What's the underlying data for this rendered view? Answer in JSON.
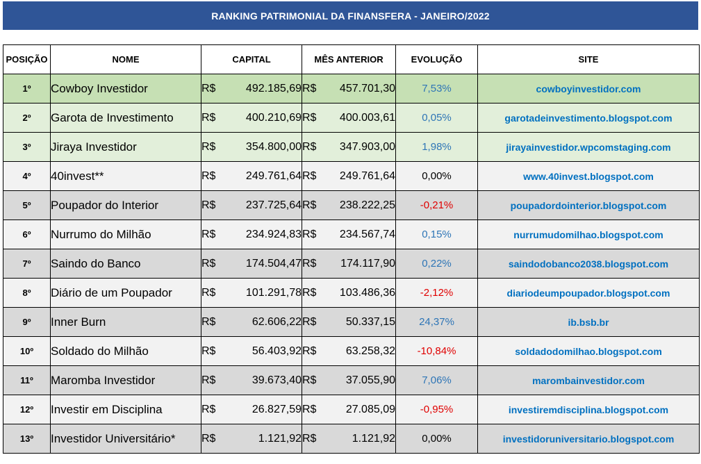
{
  "title": "RANKING PATRIMONIAL DA FINANSFERA - JANEIRO/2022",
  "headers": {
    "posicao": "POSIÇÃO",
    "nome": "NOME",
    "capital": "CAPITAL",
    "mes_anterior": "MÊS ANTERIOR",
    "evolucao": "EVOLUÇÃO",
    "site": "SITE"
  },
  "currency": "R$",
  "colors": {
    "title_bg": "#2f5597",
    "first_row_bg": "#c6e0b4",
    "green_row_bg": "#e2efda",
    "light_row_bg": "#f2f2f2",
    "gray_row_bg": "#d9d9d9",
    "site_text": "#0070c0",
    "positive": "#2e75b6",
    "negative": "#e00000"
  },
  "rows": [
    {
      "pos": "1º",
      "nome": "Cowboy Investidor",
      "capital": "492.185,69",
      "anterior": "457.701,30",
      "evolucao": "7,53%",
      "site": "cowboyinvestidor.com"
    },
    {
      "pos": "2º",
      "nome": "Garota de Investimento",
      "capital": "400.210,69",
      "anterior": "400.003,61",
      "evolucao": "0,05%",
      "site": "garotadeinvestimento.blogspot.com"
    },
    {
      "pos": "3º",
      "nome": "Jiraya Investidor",
      "capital": "354.800,00",
      "anterior": "347.903,00",
      "evolucao": "1,98%",
      "site": "jirayainvestidor.wpcomstaging.com"
    },
    {
      "pos": "4º",
      "nome": "40invest**",
      "capital": "249.761,64",
      "anterior": "249.761,64",
      "evolucao": "0,00%",
      "site": "www.40invest.blogspot.com"
    },
    {
      "pos": "5º",
      "nome": "Poupador do Interior",
      "capital": "237.725,64",
      "anterior": "238.222,25",
      "evolucao": "-0,21%",
      "site": "poupadordointerior.blogspot.com"
    },
    {
      "pos": "6º",
      "nome": "Nurrumo do Milhão",
      "capital": "234.924,83",
      "anterior": "234.567,74",
      "evolucao": "0,15%",
      "site": "nurrumudomilhao.blogspot.com"
    },
    {
      "pos": "7º",
      "nome": "Saindo do Banco",
      "capital": "174.504,47",
      "anterior": "174.117,90",
      "evolucao": "0,22%",
      "site": "saindodobanco2038.blogspot.com"
    },
    {
      "pos": "8º",
      "nome": "Diário de um Poupador",
      "capital": "101.291,78",
      "anterior": "103.486,36",
      "evolucao": "-2,12%",
      "site": "diariodeumpoupador.blogspot.com"
    },
    {
      "pos": "9º",
      "nome": "Inner Burn",
      "capital": "62.606,22",
      "anterior": "50.337,15",
      "evolucao": "24,37%",
      "site": "ib.bsb.br"
    },
    {
      "pos": "10º",
      "nome": "Soldado do Milhão",
      "capital": "56.403,92",
      "anterior": "63.258,32",
      "evolucao": "-10,84%",
      "site": "soldadodomilhao.blogspot.com"
    },
    {
      "pos": "11º",
      "nome": "Maromba Investidor",
      "capital": "39.673,40",
      "anterior": "37.055,90",
      "evolucao": "7,06%",
      "site": "marombainvestidor.com"
    },
    {
      "pos": "12º",
      "nome": "Investir em Disciplina",
      "capital": "26.827,59",
      "anterior": "27.085,09",
      "evolucao": "-0,95%",
      "site": "investiremdisciplina.blogspot.com"
    },
    {
      "pos": "13º",
      "nome": "Investidor Universitário*",
      "capital": "1.121,92",
      "anterior": "1.121,92",
      "evolucao": "0,00%",
      "site": "investidoruniversitario.blogspot.com"
    }
  ]
}
